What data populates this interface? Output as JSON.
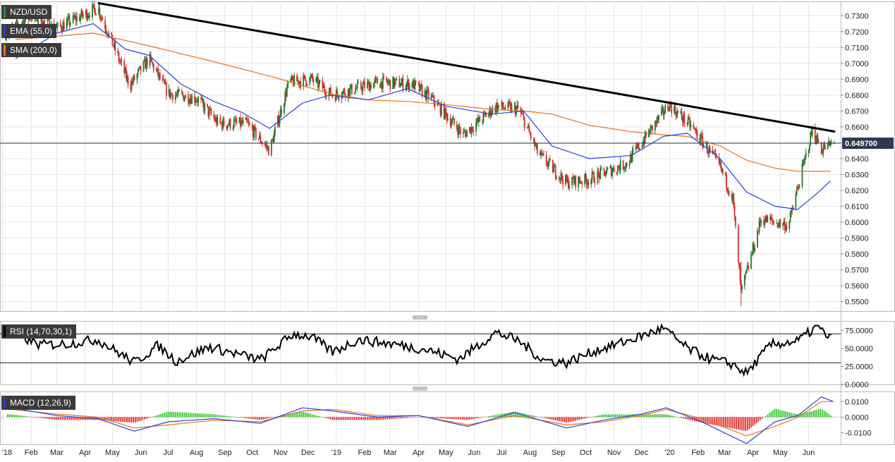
{
  "legends": {
    "price": {
      "symbol": "NZD/USD",
      "ema": "EMA (55,0)",
      "sma": "SMA (200,0)"
    },
    "rsi": "RSI (14,70,30,1)",
    "macd": "MACD (12,26,9)"
  },
  "current_price_label": "0.649700",
  "colors": {
    "up_candle": "#1f7a2b",
    "down_candle": "#d0312d",
    "ema": "#2b3fd9",
    "sma": "#e8731e",
    "trendline": "#000000",
    "rsi_line": "#000000",
    "macd_line": "#2b3fd9",
    "signal_line": "#e8731e",
    "hist_pos": "#22c51e",
    "hist_neg": "#e0201c",
    "price_tag_bg": "#2b3a4e"
  },
  "chart_data": [
    {
      "type": "candlestick",
      "title": "NZD/USD",
      "series": [
        {
          "name": "EMA (55,0)",
          "x": [
            "2018-01-15",
            "2018-03-01",
            "2018-04-10",
            "2018-05-15",
            "2018-06-10",
            "2018-07-15",
            "2018-08-20",
            "2018-09-20",
            "2018-10-20",
            "2018-11-25",
            "2018-12-25",
            "2019-02-05",
            "2019-03-20",
            "2019-05-01",
            "2019-06-20",
            "2019-07-25",
            "2019-08-25",
            "2019-10-05",
            "2019-11-20",
            "2019-12-25",
            "2020-01-20",
            "2020-02-25",
            "2020-03-25",
            "2020-04-25",
            "2020-05-20",
            "2020-06-10",
            "2020-06-25"
          ],
          "values": [
            0.703,
            0.719,
            0.725,
            0.709,
            0.705,
            0.687,
            0.676,
            0.669,
            0.659,
            0.675,
            0.68,
            0.677,
            0.684,
            0.673,
            0.668,
            0.67,
            0.648,
            0.64,
            0.642,
            0.654,
            0.656,
            0.64,
            0.619,
            0.61,
            0.608,
            0.618,
            0.626
          ]
        },
        {
          "name": "SMA (200,0)",
          "x": [
            "2018-01-15",
            "2018-04-10",
            "2018-06-10",
            "2018-08-20",
            "2018-10-20",
            "2018-12-25",
            "2019-02-05",
            "2019-03-20",
            "2019-05-01",
            "2019-06-20",
            "2019-07-25",
            "2019-08-25",
            "2019-10-05",
            "2019-11-20",
            "2019-12-25",
            "2020-01-20",
            "2020-02-25",
            "2020-03-25",
            "2020-04-25",
            "2020-05-20",
            "2020-06-25"
          ],
          "values": [
            0.715,
            0.719,
            0.711,
            0.701,
            0.692,
            0.681,
            0.677,
            0.676,
            0.674,
            0.671,
            0.67,
            0.668,
            0.661,
            0.657,
            0.655,
            0.654,
            0.648,
            0.639,
            0.634,
            0.632,
            0.632
          ]
        },
        {
          "name": "Trendline",
          "x": [
            "2018-04-15",
            "2020-06-30"
          ],
          "values": [
            0.738,
            0.657
          ]
        }
      ],
      "key_points": {
        "high": 0.738,
        "low": 0.547,
        "last": 0.6497
      },
      "x_ticks": [
        "'18",
        "Feb",
        "Mar",
        "Apr",
        "May",
        "Jun",
        "Jul",
        "Aug",
        "Sep",
        "Oct",
        "Nov",
        "Dec",
        "'19",
        "Feb",
        "Mar",
        "Apr",
        "May",
        "Jun",
        "Jul",
        "Aug",
        "Sep",
        "Oct",
        "Nov",
        "Dec",
        "'20",
        "Feb",
        "Mar",
        "Apr",
        "May",
        "Jun"
      ],
      "y_ticks": [
        "0.7300",
        "0.7200",
        "0.7100",
        "0.7000",
        "0.6900",
        "0.6800",
        "0.6700",
        "0.6600",
        "0.6500",
        "0.6400",
        "0.6300",
        "0.6200",
        "0.6100",
        "0.6000",
        "0.5900",
        "0.5800",
        "0.5700",
        "0.5600",
        "0.5500"
      ],
      "ylim": [
        0.544,
        0.739
      ],
      "grid": true
    },
    {
      "type": "line",
      "title": "RSI (14,70,30,1)",
      "y_ticks": [
        "75.0000",
        "50.0000",
        "25.0000",
        "0.0000"
      ],
      "levels": [
        70,
        30
      ],
      "ylim": [
        0,
        88
      ],
      "series": [
        {
          "name": "RSI",
          "x": [
            "2018-01-10",
            "2018-02-10",
            "2018-03-10",
            "2018-04-15",
            "2018-05-25",
            "2018-06-20",
            "2018-07-10",
            "2018-08-15",
            "2018-09-15",
            "2018-10-10",
            "2018-11-15",
            "2018-12-05",
            "2018-12-28",
            "2019-01-25",
            "2019-03-10",
            "2019-04-10",
            "2019-05-15",
            "2019-06-25",
            "2019-07-20",
            "2019-08-15",
            "2019-09-10",
            "2019-10-10",
            "2019-11-20",
            "2019-12-25",
            "2020-01-20",
            "2020-02-15",
            "2020-03-10",
            "2020-03-25",
            "2020-04-20",
            "2020-05-20",
            "2020-06-10",
            "2020-06-25"
          ],
          "values": [
            72,
            55,
            56,
            62,
            30,
            54,
            32,
            52,
            42,
            34,
            70,
            66,
            45,
            62,
            55,
            48,
            35,
            72,
            60,
            34,
            30,
            46,
            62,
            78,
            50,
            35,
            28,
            15,
            55,
            60,
            80,
            63
          ]
        }
      ]
    },
    {
      "type": "line",
      "title": "MACD (12,26,9)",
      "y_ticks": [
        "0.0100",
        "0.0000",
        "-0.0100"
      ],
      "ylim": [
        -0.0175,
        0.0165
      ],
      "series": [
        {
          "name": "MACD",
          "x": [
            "2018-01-10",
            "2018-03-01",
            "2018-04-15",
            "2018-05-25",
            "2018-07-01",
            "2018-08-20",
            "2018-10-10",
            "2018-11-25",
            "2018-12-28",
            "2019-02-15",
            "2019-04-01",
            "2019-05-25",
            "2019-07-15",
            "2019-09-10",
            "2019-10-20",
            "2019-12-01",
            "2019-12-28",
            "2020-02-05",
            "2020-03-25",
            "2020-04-25",
            "2020-05-20",
            "2020-06-15",
            "2020-06-28"
          ],
          "values": [
            0.006,
            0.001,
            -0.001,
            -0.009,
            -0.003,
            -0.001,
            -0.004,
            0.006,
            0.004,
            0.0,
            0.001,
            -0.006,
            0.003,
            -0.007,
            -0.002,
            0.002,
            0.006,
            -0.003,
            -0.017,
            -0.003,
            0.001,
            0.013,
            0.01
          ]
        },
        {
          "name": "Signal",
          "x": [
            "2018-01-10",
            "2018-03-01",
            "2018-04-15",
            "2018-05-25",
            "2018-07-01",
            "2018-08-20",
            "2018-10-10",
            "2018-11-25",
            "2018-12-28",
            "2019-02-15",
            "2019-04-01",
            "2019-05-25",
            "2019-07-15",
            "2019-09-10",
            "2019-10-20",
            "2019-12-01",
            "2019-12-28",
            "2020-02-05",
            "2020-03-25",
            "2020-04-25",
            "2020-05-20",
            "2020-06-15",
            "2020-06-28"
          ],
          "values": [
            0.005,
            0.002,
            0.0,
            -0.007,
            -0.005,
            -0.002,
            -0.003,
            0.004,
            0.005,
            0.001,
            0.001,
            -0.005,
            0.001,
            -0.005,
            -0.003,
            0.001,
            0.005,
            -0.001,
            -0.012,
            -0.006,
            0.0,
            0.01,
            0.01
          ]
        }
      ]
    }
  ]
}
